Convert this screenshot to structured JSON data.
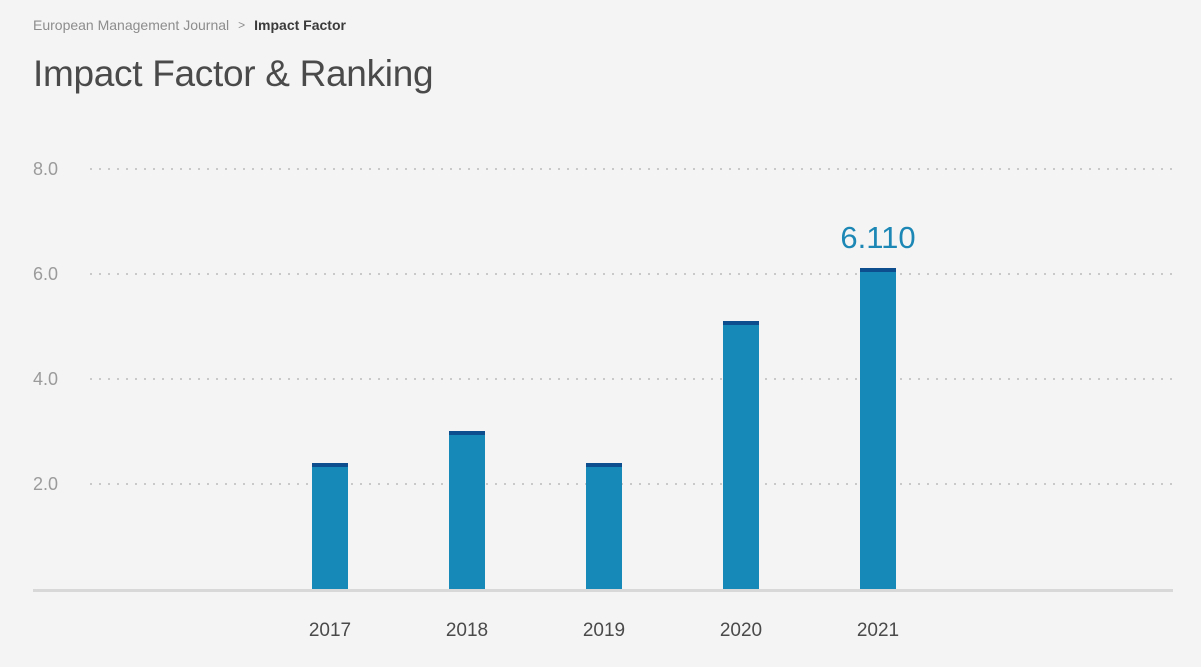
{
  "breadcrumb": {
    "journal": "European Management Journal",
    "separator": ">",
    "current": "Impact Factor"
  },
  "page_title": "Impact Factor & Ranking",
  "chart_data": {
    "type": "bar",
    "title": "Impact Factor & Ranking",
    "categories": [
      "2017",
      "2018",
      "2019",
      "2020",
      "2021"
    ],
    "values": [
      2.4,
      3.0,
      2.4,
      5.1,
      6.11
    ],
    "annotation": {
      "category": "2021",
      "text": "6.110"
    },
    "xlabel": "",
    "ylabel": "",
    "ylim": [
      0,
      8.6
    ],
    "yticks": [
      2,
      4,
      6,
      8
    ],
    "ytick_labels": [
      "2.0",
      "4.0",
      "6.0",
      "8.0"
    ],
    "grid": "dotted-horizontal",
    "legend": "none",
    "colors": {
      "background": "#f4f4f4",
      "bar": "#1789b8",
      "bar_cap": "#0d4f8e",
      "annotation": "#1c87b5",
      "gridline": "#c9c9c9",
      "axis_line": "#d8d8d8",
      "ytick_text": "#9b9b9b",
      "xtick_text": "#4a4a4a",
      "title_text": "#4a4a4a",
      "breadcrumb_link": "#8d8d8d",
      "breadcrumb_current": "#3b3b3b"
    }
  }
}
